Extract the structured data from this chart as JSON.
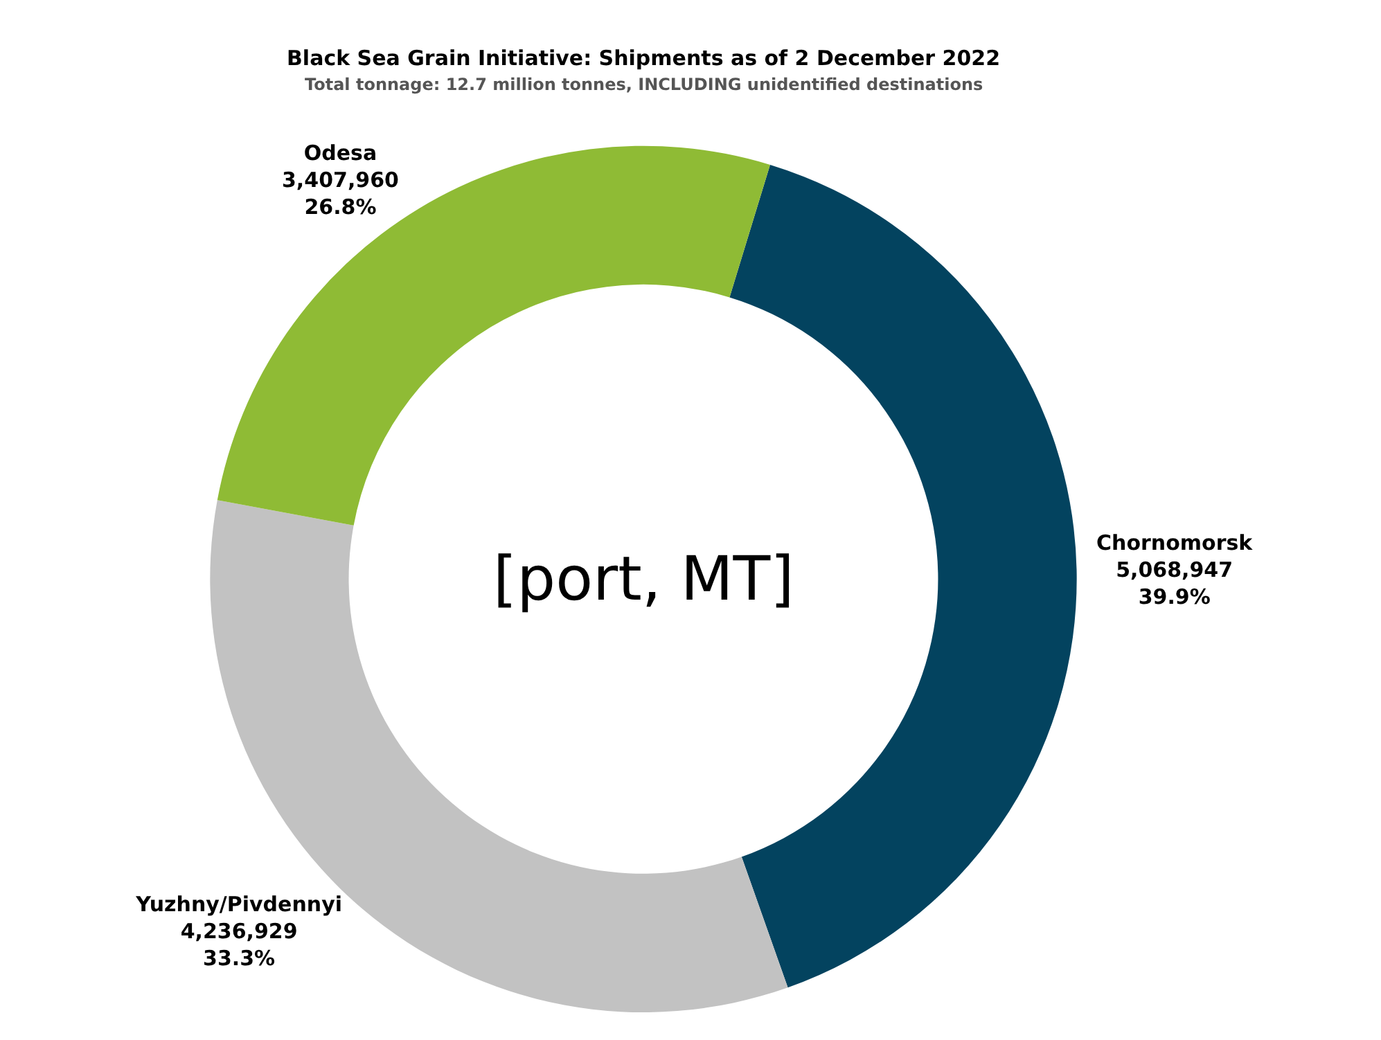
{
  "chart_data": {
    "type": "donut",
    "title": "Black Sea Grain Initiative: Shipments as of 2 December 2022",
    "subtitle": "Total tonnage: 12.7 million tonnes, INCLUDING unidentified destinations",
    "categories": [
      "Chornomorsk",
      "Yuzhny/Pivdennyi",
      "Odesa"
    ],
    "values": [
      5068947,
      4236929,
      3407960
    ],
    "value_labels": [
      "5,068,947\n39.9%",
      "4,236,929\n33.3%",
      "3,407,960\n26.8%"
    ],
    "colors": [
      "#03435f",
      "#c2c2c2",
      "#8fbb35"
    ],
    "annotations": [
      "[port, MT]"
    ],
    "legend": false
  }
}
